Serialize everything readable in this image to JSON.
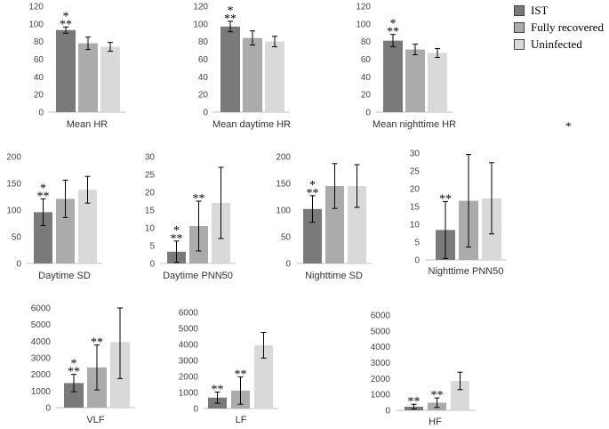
{
  "colors": {
    "IST": "#7a7a7a",
    "Fully recovered": "#ababab",
    "Uninfected": "#d9d9d9"
  },
  "legend": [
    {
      "label": "IST",
      "color": "#7a7a7a"
    },
    {
      "label": "Fully recovered",
      "color": "#ababab"
    },
    {
      "label": "Uninfected",
      "color": "#d9d9d9"
    }
  ],
  "stray_mark": "*",
  "chart_data": [
    {
      "type": "bar",
      "title": "Mean HR",
      "ylim": [
        0,
        120
      ],
      "yticks": [
        0,
        20,
        40,
        60,
        80,
        100,
        120
      ],
      "categories": [
        "IST",
        "Fully recovered",
        "Uninfected"
      ],
      "values": [
        93,
        78,
        74
      ],
      "errors": [
        3.5,
        7,
        5
      ],
      "annotations": [
        [
          "*",
          "**"
        ],
        [],
        []
      ]
    },
    {
      "type": "bar",
      "title": "Mean daytime HR",
      "ylim": [
        0,
        120
      ],
      "yticks": [
        0,
        20,
        40,
        60,
        80,
        100,
        120
      ],
      "categories": [
        "IST",
        "Fully recovered",
        "Uninfected"
      ],
      "values": [
        97,
        84,
        80
      ],
      "errors": [
        6,
        8,
        6
      ],
      "annotations": [
        [
          "*",
          "**"
        ],
        [],
        []
      ]
    },
    {
      "type": "bar",
      "title": "Mean nighttime HR",
      "ylim": [
        0,
        120
      ],
      "yticks": [
        0,
        20,
        40,
        60,
        80,
        100,
        120
      ],
      "categories": [
        "IST",
        "Fully recovered",
        "Uninfected"
      ],
      "values": [
        81,
        71,
        67
      ],
      "errors": [
        7,
        6,
        5
      ],
      "annotations": [
        [
          "*",
          "**"
        ],
        [],
        []
      ]
    },
    {
      "type": "bar",
      "title": "Daytime SD",
      "ylim": [
        0,
        200
      ],
      "yticks": [
        0,
        50,
        100,
        150,
        200
      ],
      "categories": [
        "IST",
        "Fully recovered",
        "Uninfected"
      ],
      "values": [
        96,
        121,
        138
      ],
      "errors": [
        25,
        35,
        25
      ],
      "annotations": [
        [
          "*",
          "**"
        ],
        [],
        []
      ]
    },
    {
      "type": "bar",
      "title": "Daytime PNN50",
      "ylim": [
        0,
        30
      ],
      "yticks": [
        0,
        5,
        10,
        15,
        20,
        25,
        30
      ],
      "categories": [
        "IST",
        "Fully recovered",
        "Uninfected"
      ],
      "values": [
        3.3,
        10.5,
        17
      ],
      "errors": [
        3,
        7,
        10
      ],
      "annotations": [
        [
          "*",
          "**"
        ],
        [
          "**"
        ],
        []
      ]
    },
    {
      "type": "bar",
      "title": "Nighttime SD",
      "ylim": [
        0,
        200
      ],
      "yticks": [
        0,
        50,
        100,
        150,
        200
      ],
      "categories": [
        "IST",
        "Fully recovered",
        "Uninfected"
      ],
      "values": [
        102,
        145,
        145
      ],
      "errors": [
        25,
        42,
        40
      ],
      "annotations": [
        [
          "*",
          "**"
        ],
        [],
        []
      ]
    },
    {
      "type": "bar",
      "title": "Nighttime PNN50",
      "ylim": [
        0,
        30
      ],
      "yticks": [
        0,
        5,
        10,
        15,
        20,
        25,
        30
      ],
      "categories": [
        "IST",
        "Fully recovered",
        "Uninfected"
      ],
      "values": [
        8.4,
        16.6,
        17.3
      ],
      "errors": [
        8,
        13,
        10
      ],
      "annotations": [
        [
          "**"
        ],
        [],
        []
      ]
    },
    {
      "type": "bar",
      "title": "VLF",
      "ylim": [
        0,
        6000
      ],
      "yticks": [
        0,
        1000,
        2000,
        3000,
        4000,
        5000,
        6000
      ],
      "categories": [
        "IST",
        "Fully recovered",
        "Uninfected"
      ],
      "values": [
        1480,
        2420,
        3950
      ],
      "errors": [
        520,
        1350,
        2200
      ],
      "annotations": [
        [
          "*",
          "**"
        ],
        [
          "**"
        ],
        []
      ]
    },
    {
      "type": "bar",
      "title": "LF",
      "ylim": [
        0,
        6000
      ],
      "yticks": [
        0,
        1000,
        2000,
        3000,
        4000,
        5000,
        6000
      ],
      "categories": [
        "IST",
        "Fully recovered",
        "Uninfected"
      ],
      "values": [
        680,
        1120,
        3950
      ],
      "errors": [
        350,
        850,
        800
      ],
      "annotations": [
        [
          "**"
        ],
        [
          "**"
        ],
        []
      ]
    },
    {
      "type": "bar",
      "title": "HF",
      "ylim": [
        0,
        6000
      ],
      "yticks": [
        0,
        1000,
        2000,
        3000,
        4000,
        5000,
        6000
      ],
      "categories": [
        "IST",
        "Fully recovered",
        "Uninfected"
      ],
      "values": [
        230,
        480,
        1850
      ],
      "errors": [
        150,
        300,
        550
      ],
      "annotations": [
        [
          "**"
        ],
        [
          "**"
        ],
        []
      ]
    }
  ]
}
